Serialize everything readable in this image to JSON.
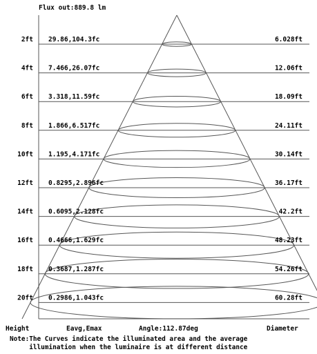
{
  "flux_label": "Flux out:889.8 lm",
  "rows": [
    {
      "height": "2ft",
      "eavg_emax": "29.86,104.3fc",
      "diameter": "6.028ft"
    },
    {
      "height": "4ft",
      "eavg_emax": "7.466,26.07fc",
      "diameter": "12.06ft"
    },
    {
      "height": "6ft",
      "eavg_emax": "3.318,11.59fc",
      "diameter": "18.09ft"
    },
    {
      "height": "8ft",
      "eavg_emax": "1.866,6.517fc",
      "diameter": "24.11ft"
    },
    {
      "height": "10ft",
      "eavg_emax": "1.195,4.171fc",
      "diameter": "30.14ft"
    },
    {
      "height": "12ft",
      "eavg_emax": "0.8295,2.896fc",
      "diameter": "36.17ft"
    },
    {
      "height": "14ft",
      "eavg_emax": "0.6095,2.128fc",
      "diameter": "42.2ft"
    },
    {
      "height": "16ft",
      "eavg_emax": "0.4666,1.629fc",
      "diameter": "48.23ft"
    },
    {
      "height": "18ft",
      "eavg_emax": "0.3687,1.287fc",
      "diameter": "54.26ft"
    },
    {
      "height": "20ft",
      "eavg_emax": "0.2986,1.043fc",
      "diameter": "60.28ft"
    }
  ],
  "footer": {
    "height_label": "Height",
    "eavg_label": "Eavg,Emax",
    "angle_label": "Angle:112.87deg",
    "diameter_label": "Diameter"
  },
  "note": {
    "line1": "Note:The Curves indicate the illuminated area and the average",
    "line2": "     illumination when the luminaire is at different distance"
  },
  "colors": {
    "ink": "#000000",
    "lines": "#555555"
  }
}
